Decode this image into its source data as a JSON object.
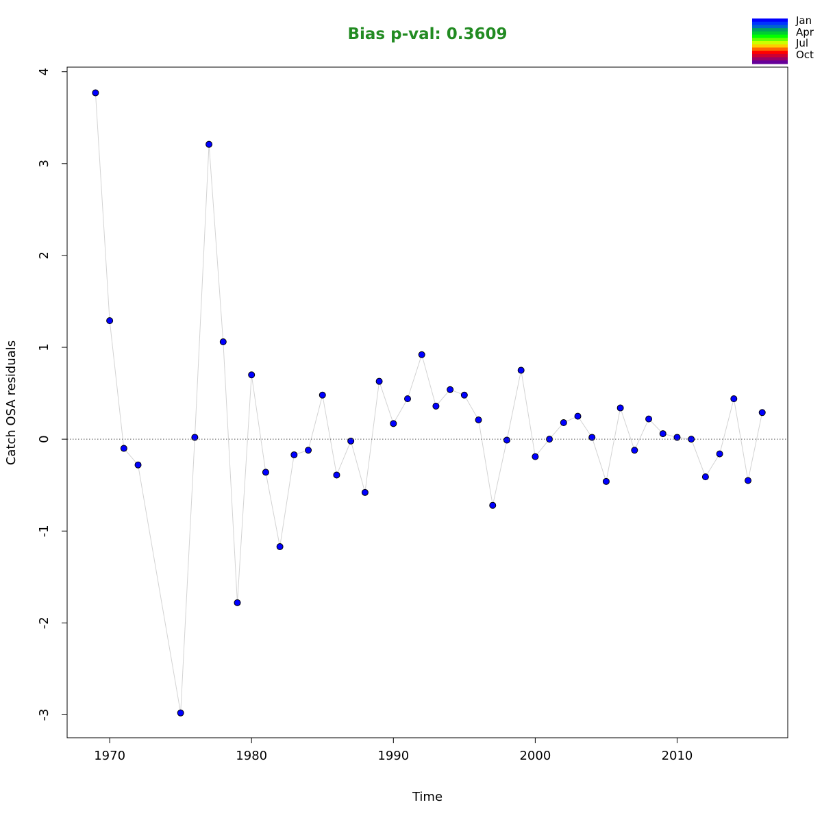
{
  "chart_data": {
    "type": "scatter",
    "title": "Bias p-val: 0.3609",
    "xlabel": "Time",
    "ylabel": "Catch OSA residuals",
    "xlim": [
      1967,
      2017.8
    ],
    "ylim": [
      -3.25,
      4.05
    ],
    "x_ticks": [
      1970,
      1980,
      1990,
      2000,
      2010
    ],
    "y_ticks": [
      -3,
      -2,
      -1,
      0,
      1,
      2,
      3,
      4
    ],
    "y_tick_labels": [
      "-3",
      "-2",
      "-1",
      "0",
      "1",
      "2",
      "3",
      "4"
    ],
    "reference_line": 0,
    "points": [
      {
        "x": 1969,
        "y": 3.77
      },
      {
        "x": 1970,
        "y": 1.29
      },
      {
        "x": 1971,
        "y": -0.1
      },
      {
        "x": 1972,
        "y": -0.28
      },
      {
        "x": 1975,
        "y": -2.98
      },
      {
        "x": 1976,
        "y": 0.02
      },
      {
        "x": 1977,
        "y": 3.21
      },
      {
        "x": 1978,
        "y": 1.06
      },
      {
        "x": 1979,
        "y": -1.78
      },
      {
        "x": 1980,
        "y": 0.7
      },
      {
        "x": 1981,
        "y": -0.36
      },
      {
        "x": 1982,
        "y": -1.17
      },
      {
        "x": 1983,
        "y": -0.17
      },
      {
        "x": 1984,
        "y": -0.12
      },
      {
        "x": 1985,
        "y": 0.48
      },
      {
        "x": 1986,
        "y": -0.39
      },
      {
        "x": 1987,
        "y": -0.02
      },
      {
        "x": 1988,
        "y": -0.58
      },
      {
        "x": 1989,
        "y": 0.63
      },
      {
        "x": 1990,
        "y": 0.17
      },
      {
        "x": 1991,
        "y": 0.44
      },
      {
        "x": 1992,
        "y": 0.92
      },
      {
        "x": 1993,
        "y": 0.36
      },
      {
        "x": 1994,
        "y": 0.54
      },
      {
        "x": 1995,
        "y": 0.48
      },
      {
        "x": 1996,
        "y": 0.21
      },
      {
        "x": 1997,
        "y": -0.72
      },
      {
        "x": 1998,
        "y": -0.01
      },
      {
        "x": 1999,
        "y": 0.75
      },
      {
        "x": 2000,
        "y": -0.19
      },
      {
        "x": 2001,
        "y": -0.0
      },
      {
        "x": 2002,
        "y": 0.18
      },
      {
        "x": 2003,
        "y": 0.25
      },
      {
        "x": 2004,
        "y": 0.02
      },
      {
        "x": 2005,
        "y": -0.46
      },
      {
        "x": 2006,
        "y": 0.34
      },
      {
        "x": 2007,
        "y": -0.12
      },
      {
        "x": 2008,
        "y": 0.22
      },
      {
        "x": 2009,
        "y": 0.06
      },
      {
        "x": 2010,
        "y": 0.02
      },
      {
        "x": 2011,
        "y": 0.0
      },
      {
        "x": 2012,
        "y": -0.41
      },
      {
        "x": 2013,
        "y": -0.16
      },
      {
        "x": 2014,
        "y": 0.44
      },
      {
        "x": 2015,
        "y": -0.45
      },
      {
        "x": 2016,
        "y": 0.29
      }
    ],
    "legend": {
      "placement": "top-right",
      "labels": [
        "Jan",
        "Apr",
        "Jul",
        "Oct"
      ],
      "colors": [
        "#0000FF",
        "#0033FF",
        "#0066CC",
        "#00A35C",
        "#00CC33",
        "#00FF00",
        "#66FF00",
        "#CCFF00",
        "#FFCC00",
        "#FF6600",
        "#FF0000",
        "#CC0033",
        "#990066",
        "#660099"
      ]
    },
    "colors": {
      "title": "#228B22",
      "point_fill": "#0000FF",
      "point_stroke": "#000000",
      "line": "#D3D3D3",
      "reference": "#555555"
    }
  }
}
